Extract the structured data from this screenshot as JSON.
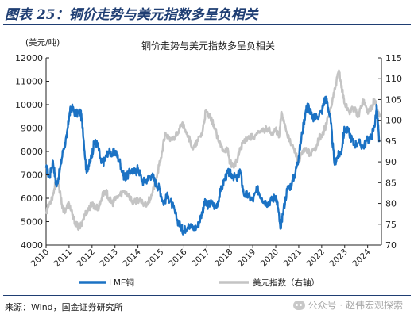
{
  "figure": {
    "title": "图表 25：铜价走势与美元指数多呈负相关",
    "source": "来源：Wind，国金证券研究所",
    "watermark": "公众号 · 赵伟宏观探索",
    "watermark_icon": "wechat-icon"
  },
  "chart_data": {
    "type": "line",
    "title": "铜价走势与美元指数多呈负相关",
    "ylabel_left": "(美元/吨)",
    "ylabel_right": "",
    "ylim_left": [
      4000,
      12000
    ],
    "ylim_right": [
      70,
      115
    ],
    "yticks_left": [
      4000,
      5000,
      6000,
      7000,
      8000,
      9000,
      10000,
      11000,
      12000
    ],
    "yticks_right": [
      70,
      75,
      80,
      85,
      90,
      95,
      100,
      105,
      110,
      115
    ],
    "xlim": [
      2010,
      2024.6
    ],
    "xticks": [
      "2010",
      "2011",
      "2012",
      "2013",
      "2014",
      "2015",
      "2016",
      "2017",
      "2018",
      "2019",
      "2020",
      "2021",
      "2022",
      "2023",
      "2024"
    ],
    "legend_position": "bottom",
    "grid": false,
    "colors": {
      "copper": "#1b72c4",
      "usd": "#c4c4c4"
    },
    "series": [
      {
        "name": "LME铜",
        "axis": "left",
        "x": [
          2010.0,
          2010.15,
          2010.3,
          2010.45,
          2010.6,
          2010.75,
          2010.9,
          2011.0,
          2011.1,
          2011.3,
          2011.5,
          2011.6,
          2011.75,
          2011.9,
          2012.0,
          2012.1,
          2012.25,
          2012.4,
          2012.55,
          2012.7,
          2012.9,
          2013.0,
          2013.2,
          2013.35,
          2013.5,
          2013.7,
          2013.9,
          2014.0,
          2014.2,
          2014.4,
          2014.6,
          2014.8,
          2014.95,
          2015.1,
          2015.3,
          2015.5,
          2015.7,
          2015.9,
          2016.0,
          2016.2,
          2016.4,
          2016.6,
          2016.8,
          2016.9,
          2017.0,
          2017.2,
          2017.4,
          2017.6,
          2017.8,
          2017.95,
          2018.1,
          2018.3,
          2018.45,
          2018.6,
          2018.8,
          2019.0,
          2019.2,
          2019.4,
          2019.6,
          2019.8,
          2020.0,
          2020.1,
          2020.2,
          2020.3,
          2020.5,
          2020.7,
          2020.9,
          2021.0,
          2021.15,
          2021.3,
          2021.4,
          2021.6,
          2021.8,
          2022.0,
          2022.15,
          2022.25,
          2022.4,
          2022.55,
          2022.7,
          2022.85,
          2023.0,
          2023.2,
          2023.4,
          2023.6,
          2023.8,
          2024.0,
          2024.15,
          2024.3,
          2024.4,
          2024.5
        ],
        "y": [
          7300,
          6900,
          7600,
          6500,
          7200,
          8100,
          8600,
          9500,
          9900,
          9600,
          9700,
          9000,
          7200,
          7500,
          7900,
          8400,
          8300,
          7500,
          7600,
          8000,
          7900,
          8000,
          7600,
          7000,
          6900,
          7200,
          7100,
          7300,
          6700,
          6800,
          7000,
          6600,
          6400,
          5800,
          6100,
          5700,
          5100,
          4700,
          4600,
          4900,
          4700,
          4800,
          5400,
          5800,
          5700,
          5800,
          5600,
          6300,
          6900,
          7100,
          7000,
          6800,
          7200,
          6200,
          6100,
          5900,
          6400,
          6000,
          5800,
          5900,
          6100,
          5600,
          4700,
          5300,
          6400,
          6600,
          7300,
          7800,
          8800,
          9700,
          10000,
          9400,
          9500,
          9700,
          10300,
          10100,
          9200,
          7500,
          7800,
          8000,
          9000,
          8800,
          8300,
          8400,
          8200,
          8500,
          8600,
          9100,
          9900,
          8400
        ]
      },
      {
        "name": "美元指数（右轴）",
        "axis": "right",
        "x": [
          2010.0,
          2010.15,
          2010.3,
          2010.45,
          2010.6,
          2010.75,
          2010.9,
          2011.0,
          2011.15,
          2011.3,
          2011.45,
          2011.6,
          2011.75,
          2011.9,
          2012.0,
          2012.15,
          2012.3,
          2012.45,
          2012.6,
          2012.75,
          2012.9,
          2013.0,
          2013.2,
          2013.4,
          2013.6,
          2013.8,
          2014.0,
          2014.2,
          2014.4,
          2014.6,
          2014.8,
          2015.0,
          2015.2,
          2015.4,
          2015.6,
          2015.8,
          2016.0,
          2016.2,
          2016.4,
          2016.6,
          2016.8,
          2016.95,
          2017.1,
          2017.3,
          2017.5,
          2017.7,
          2017.9,
          2018.0,
          2018.15,
          2018.3,
          2018.45,
          2018.6,
          2018.8,
          2019.0,
          2019.3,
          2019.6,
          2019.9,
          2020.0,
          2020.15,
          2020.25,
          2020.4,
          2020.6,
          2020.8,
          2021.0,
          2021.15,
          2021.3,
          2021.5,
          2021.7,
          2021.9,
          2022.0,
          2022.2,
          2022.4,
          2022.6,
          2022.75,
          2022.9,
          2023.0,
          2023.2,
          2023.4,
          2023.6,
          2023.8,
          2024.0,
          2024.15,
          2024.3,
          2024.45,
          2024.55
        ],
        "y": [
          78,
          80,
          82,
          86,
          83,
          78,
          79,
          80,
          77,
          75,
          74,
          76,
          78,
          79,
          80,
          79,
          79,
          82,
          83,
          81,
          80,
          81,
          82,
          83,
          82,
          80,
          81,
          80,
          80,
          82,
          86,
          91,
          97,
          95,
          96,
          98,
          99,
          96,
          93,
          95,
          97,
          102,
          101,
          99,
          95,
          93,
          93,
          90,
          89,
          90,
          93,
          95,
          96,
          96,
          97,
          98,
          97,
          98,
          96,
          102,
          99,
          95,
          93,
          90,
          92,
          93,
          92,
          93,
          96,
          96,
          99,
          103,
          108,
          112,
          107,
          104,
          102,
          103,
          101,
          105,
          102,
          103,
          105,
          102,
          101
        ]
      }
    ]
  }
}
